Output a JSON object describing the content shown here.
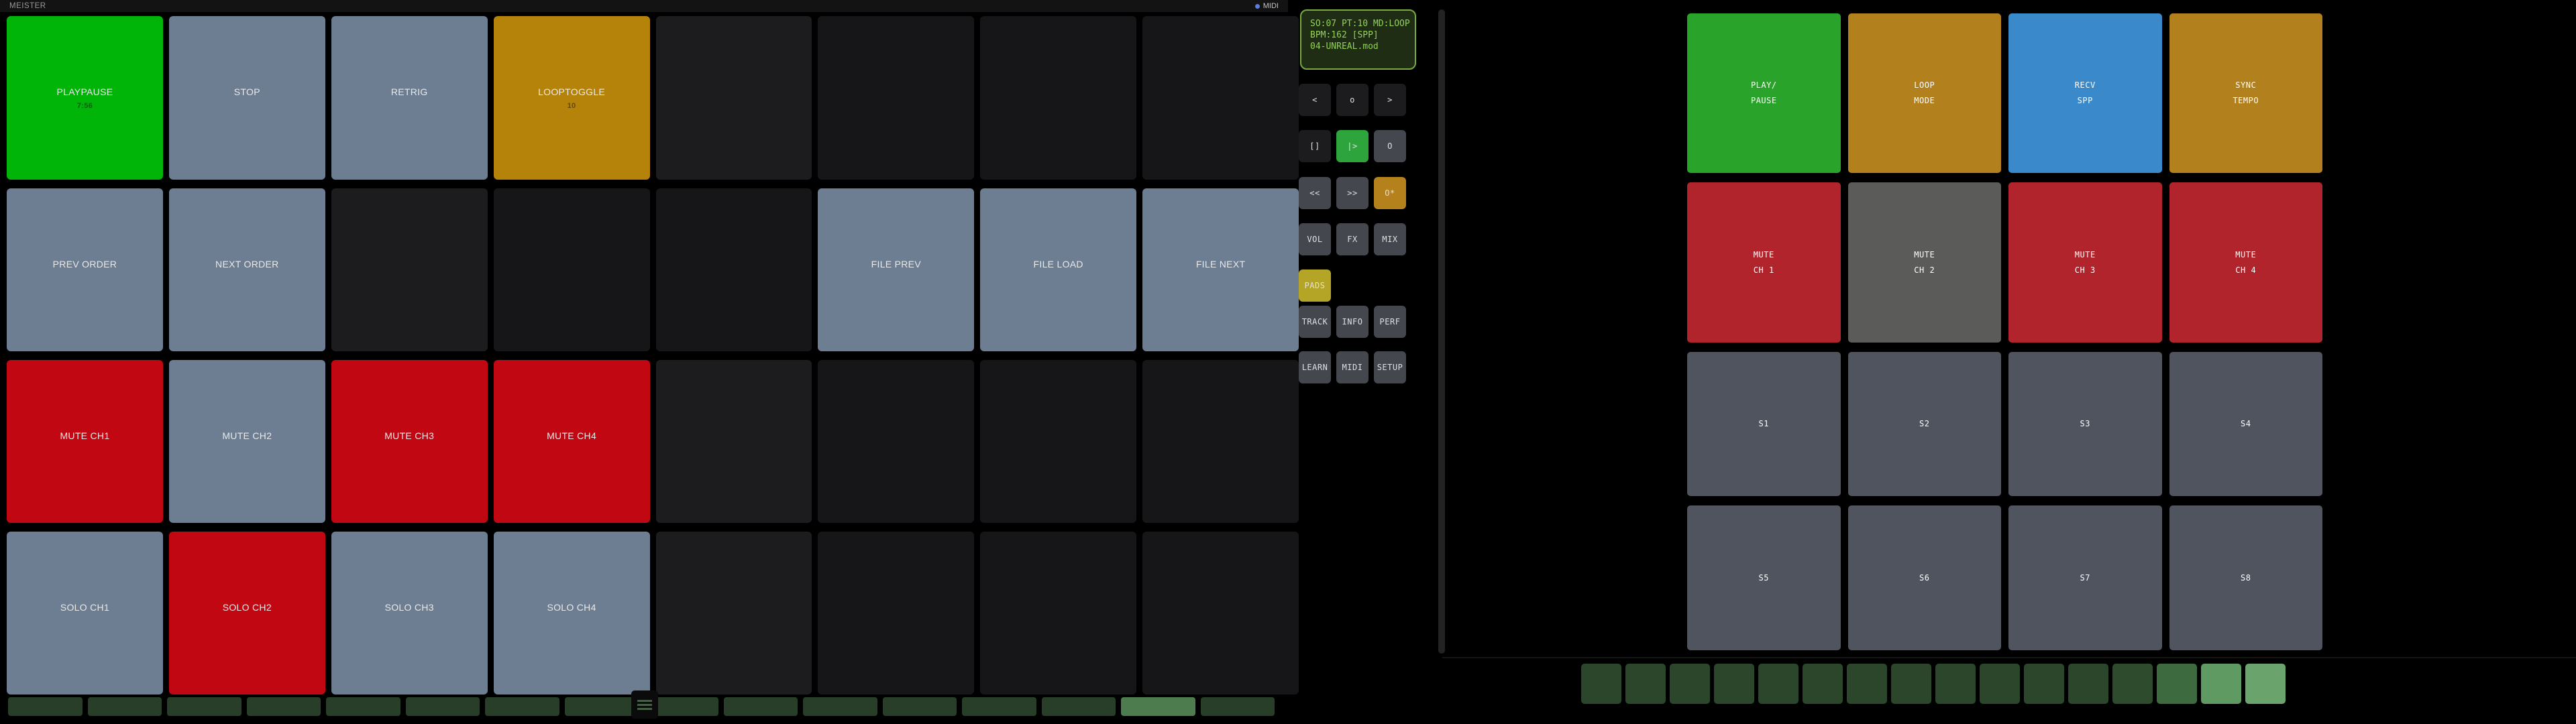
{
  "palette": {
    "midi-dot": "#5a7ce4",
    "pad-green": "#00b408",
    "pad-steel": "#6d7e92",
    "pad-orange": "#b5830a",
    "pad-red": "#c10712",
    "pad-dark": "#1c1c1e",
    "pad-darker": "#161618",
    "order-off": "#293e28",
    "order-on": "#4d7d4f",
    "lcd-bg": "#1e2d13",
    "lcd-border": "#79ab41",
    "lcd-text": "#92d258",
    "btn-dark": "#1c1c1e",
    "btn-slate": "#45474f",
    "btn-green": "#2da43c",
    "btn-orange": "#b5811c",
    "btn-olive": "#b4a527",
    "sync-green": "#2aa32b",
    "sync-amber": "#b2811e",
    "sync-blue": "#3a89cb",
    "sync-red": "#b2242c",
    "sync-gray": "#5b5b59",
    "sync-slate": "#50545e",
    "step-l0": "#2b462b",
    "step-l1": "#2e4b2d",
    "step-l2": "#3e6a40",
    "step-l3": "#5f9a62",
    "step-l4": "#6aa46c"
  },
  "header": {
    "title": "MEISTER",
    "midi_label": "MIDI"
  },
  "left_grid": {
    "pads": [
      {
        "label": "PLAYPAUSE",
        "sub": "7:56",
        "color": "pad-green"
      },
      {
        "label": "STOP",
        "color": "pad-steel"
      },
      {
        "label": "RETRIG",
        "color": "pad-steel"
      },
      {
        "label": "LOOPTOGGLE",
        "sub": "10",
        "color": "pad-orange"
      },
      {
        "color": "pad-dark"
      },
      {
        "color": "pad-darker"
      },
      {
        "color": "pad-darker"
      },
      {
        "color": "pad-darker"
      },
      {
        "label": "PREV ORDER",
        "color": "pad-steel"
      },
      {
        "label": "NEXT ORDER",
        "color": "pad-steel"
      },
      {
        "color": "pad-dark"
      },
      {
        "color": "pad-darker"
      },
      {
        "color": "pad-darker"
      },
      {
        "label": "FILE PREV",
        "color": "pad-steel"
      },
      {
        "label": "FILE LOAD",
        "color": "pad-steel"
      },
      {
        "label": "FILE NEXT",
        "color": "pad-steel"
      },
      {
        "label": "MUTE CH1",
        "color": "pad-red"
      },
      {
        "label": "MUTE CH2",
        "color": "pad-steel"
      },
      {
        "label": "MUTE CH3",
        "color": "pad-red"
      },
      {
        "label": "MUTE CH4",
        "color": "pad-red"
      },
      {
        "color": "pad-dark"
      },
      {
        "color": "pad-darker"
      },
      {
        "color": "pad-darker"
      },
      {
        "color": "pad-darker"
      },
      {
        "label": "SOLO CH1",
        "color": "pad-steel"
      },
      {
        "label": "SOLO CH2",
        "color": "pad-red"
      },
      {
        "label": "SOLO CH3",
        "color": "pad-steel"
      },
      {
        "label": "SOLO CH4",
        "color": "pad-steel"
      },
      {
        "color": "pad-dark"
      },
      {
        "color": "pad-darker"
      },
      {
        "color": "pad-darker"
      },
      {
        "color": "pad-darker"
      }
    ]
  },
  "order_strip": {
    "cells": [
      {
        "state": "off"
      },
      {
        "state": "off"
      },
      {
        "state": "off"
      },
      {
        "state": "off"
      },
      {
        "state": "off"
      },
      {
        "state": "off"
      },
      {
        "state": "off"
      },
      {
        "state": "off"
      },
      {
        "state": "off"
      },
      {
        "state": "off"
      },
      {
        "state": "off"
      },
      {
        "state": "off"
      },
      {
        "state": "off"
      },
      {
        "state": "off"
      },
      {
        "state": "on"
      },
      {
        "state": "off"
      }
    ]
  },
  "lcd": {
    "lines": [
      {
        "text": "SO:07 PT:10 MD:LOOP"
      },
      {
        "text": "BPM:162 [SPP]"
      },
      {
        "text": "04-UNREAL.mod"
      }
    ]
  },
  "transport": {
    "row1": [
      {
        "label": "<",
        "color": "btn-dark"
      },
      {
        "label": "o",
        "color": "btn-dark"
      },
      {
        "label": ">",
        "color": "btn-dark"
      }
    ],
    "row2": [
      {
        "label": "[]",
        "color": "btn-dark"
      },
      {
        "label": "|>",
        "color": "btn-green"
      },
      {
        "label": "O",
        "color": "btn-slate"
      }
    ],
    "row3": [
      {
        "label": "<<",
        "color": "btn-slate"
      },
      {
        "label": ">>",
        "color": "btn-slate"
      },
      {
        "label": "O*",
        "color": "btn-orange"
      }
    ],
    "row4": [
      {
        "label": "VOL",
        "color": "btn-slate"
      },
      {
        "label": "FX",
        "color": "btn-slate"
      },
      {
        "label": "MIX",
        "color": "btn-slate"
      }
    ],
    "row5": [
      {
        "label": "PADS",
        "color": "btn-olive"
      }
    ],
    "row6": [
      {
        "label": "TRACK",
        "color": "btn-slate"
      },
      {
        "label": "INFO",
        "color": "btn-slate"
      },
      {
        "label": "PERF",
        "color": "btn-slate"
      }
    ],
    "row7": [
      {
        "label": "LEARN",
        "color": "btn-slate"
      },
      {
        "label": "MIDI",
        "color": "btn-slate"
      },
      {
        "label": "SETUP",
        "color": "btn-slate"
      }
    ]
  },
  "right_grid": {
    "pads": [
      {
        "line1": "PLAY/",
        "line2": "PAUSE",
        "color": "sync-green"
      },
      {
        "line1": "LOOP",
        "line2": "MODE",
        "color": "sync-amber"
      },
      {
        "line1": "RECV",
        "line2": "SPP",
        "color": "sync-blue"
      },
      {
        "line1": "SYNC",
        "line2": "TEMPO",
        "color": "sync-amber"
      },
      {
        "line1": "MUTE",
        "line2": "CH 1",
        "color": "sync-red"
      },
      {
        "line1": "MUTE",
        "line2": "CH 2",
        "color": "sync-gray"
      },
      {
        "line1": "MUTE",
        "line2": "CH 3",
        "color": "sync-red"
      },
      {
        "line1": "MUTE",
        "line2": "CH 4",
        "color": "sync-red"
      },
      {
        "line1": "S1",
        "color": "sync-slate"
      },
      {
        "line1": "S2",
        "color": "sync-slate"
      },
      {
        "line1": "S3",
        "color": "sync-slate"
      },
      {
        "line1": "S4",
        "color": "sync-slate"
      },
      {
        "line1": "S5",
        "color": "sync-slate"
      },
      {
        "line1": "S6",
        "color": "sync-slate"
      },
      {
        "line1": "S7",
        "color": "sync-slate"
      },
      {
        "line1": "S8",
        "color": "sync-slate"
      }
    ]
  },
  "step_strip": {
    "cells": [
      {
        "level": "0"
      },
      {
        "level": "0"
      },
      {
        "level": "0"
      },
      {
        "level": "0"
      },
      {
        "level": "0"
      },
      {
        "level": "0"
      },
      {
        "level": "0"
      },
      {
        "level": "0"
      },
      {
        "level": "0"
      },
      {
        "level": "0"
      },
      {
        "level": "0"
      },
      {
        "level": "0"
      },
      {
        "level": "1"
      },
      {
        "level": "2"
      },
      {
        "level": "3"
      },
      {
        "level": "4"
      }
    ]
  }
}
